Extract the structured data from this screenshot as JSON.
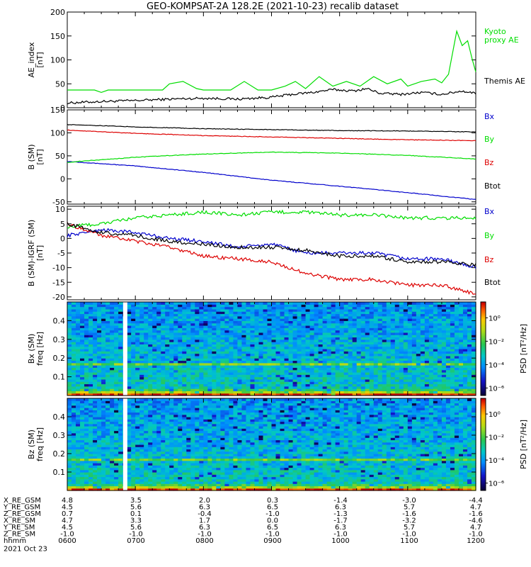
{
  "title": "GEO-KOMPSAT-2A 128.2E (2021-10-23) recalib dataset",
  "colors": {
    "black": "#000000",
    "red": "#dd0000",
    "green": "#00dd00",
    "blue": "#0000cc"
  },
  "time_ticks": [
    "0600",
    "0700",
    "0800",
    "0900",
    "1000",
    "1100",
    "1200"
  ],
  "orbit_table": {
    "rows": [
      {
        "label": "X_RE_GSM",
        "values": [
          "4.8",
          "3.5",
          "2.0",
          "0.3",
          "-1.4",
          "-3.0",
          "-4.4"
        ]
      },
      {
        "label": "Y_RE_GSM",
        "values": [
          "4.5",
          "5.6",
          "6.3",
          "6.5",
          "6.3",
          "5.7",
          "4.7"
        ]
      },
      {
        "label": "Z_RE_GSM",
        "values": [
          "0.7",
          "0.1",
          "-0.4",
          "-1.0",
          "-1.3",
          "-1.6",
          "-1.6"
        ]
      },
      {
        "label": "X_RE_SM",
        "values": [
          "4.7",
          "3.3",
          "1.7",
          "0.0",
          "-1.7",
          "-3.2",
          "-4.6"
        ]
      },
      {
        "label": "Y_RE_SM",
        "values": [
          "4.5",
          "5.6",
          "6.3",
          "6.5",
          "6.3",
          "5.7",
          "4.7"
        ]
      },
      {
        "label": "Z_RE_SM",
        "values": [
          "-1.0",
          "-1.0",
          "-1.0",
          "-1.0",
          "-1.0",
          "-1.0",
          "-1.0"
        ]
      },
      {
        "label": "hhmm",
        "values": [
          "0600",
          "0700",
          "0800",
          "0900",
          "1000",
          "1100",
          "1200"
        ]
      }
    ],
    "date": "2021 Oct 23"
  },
  "chart_data": [
    {
      "type": "line",
      "ylabel": "AE_index\n[nT]",
      "ylim": [
        0,
        200
      ],
      "yticks": [
        "0",
        "50",
        "100",
        "150",
        "200"
      ],
      "x_range": [
        "06:00",
        "12:00"
      ],
      "series": [
        {
          "name": "Kyoto\nproxy AE",
          "color": "green",
          "x": [
            6.0,
            6.4,
            6.5,
            6.6,
            7.0,
            7.4,
            7.5,
            7.7,
            7.9,
            8.0,
            8.4,
            8.6,
            8.8,
            9.0,
            9.2,
            9.35,
            9.5,
            9.7,
            9.9,
            10.1,
            10.3,
            10.5,
            10.7,
            10.9,
            11.0,
            11.2,
            11.4,
            11.5,
            11.6,
            11.72,
            11.8,
            11.88,
            11.95,
            12.0
          ],
          "values": [
            37,
            37,
            32,
            37,
            37,
            37,
            50,
            55,
            40,
            37,
            37,
            55,
            37,
            37,
            45,
            55,
            40,
            65,
            45,
            55,
            45,
            65,
            50,
            60,
            45,
            55,
            60,
            52,
            70,
            160,
            130,
            140,
            100,
            75
          ]
        },
        {
          "name": "Themis AE",
          "color": "black",
          "x": [
            6.0,
            6.5,
            7.0,
            7.5,
            8.0,
            8.5,
            9.0,
            9.3,
            9.6,
            9.9,
            10.2,
            10.4,
            10.6,
            10.9,
            11.2,
            11.5,
            11.8,
            12.0
          ],
          "values": [
            10,
            13,
            15,
            18,
            20,
            18,
            22,
            28,
            32,
            38,
            35,
            40,
            30,
            28,
            32,
            28,
            35,
            30
          ]
        }
      ]
    },
    {
      "type": "line",
      "ylabel": "B (SM)\n[nT]",
      "ylim": [
        -55,
        150
      ],
      "yticks": [
        "-50",
        "0",
        "50",
        "100",
        "150"
      ],
      "series": [
        {
          "name": "Bx",
          "color": "blue",
          "x": [
            6.0,
            7.0,
            8.0,
            9.0,
            10.0,
            11.0,
            12.0
          ],
          "values": [
            38,
            28,
            14,
            -3,
            -16,
            -30,
            -45
          ]
        },
        {
          "name": "By",
          "color": "green",
          "x": [
            6.0,
            7.0,
            8.0,
            9.0,
            10.0,
            11.0,
            12.0
          ],
          "values": [
            36,
            47,
            54,
            58,
            56,
            51,
            43
          ]
        },
        {
          "name": "Bz",
          "color": "red",
          "x": [
            6.0,
            7.0,
            8.0,
            9.0,
            10.0,
            11.0,
            12.0
          ],
          "values": [
            106,
            99,
            94,
            91,
            88,
            85,
            83
          ]
        },
        {
          "name": "Btot",
          "color": "black",
          "x": [
            6.0,
            7.0,
            8.0,
            9.0,
            10.0,
            11.0,
            12.0
          ],
          "values": [
            118,
            113,
            109,
            107,
            105,
            104,
            102
          ]
        }
      ]
    },
    {
      "type": "line",
      "ylabel": "B (SM)-IGRF (SM)\n[nT]",
      "ylim": [
        -21,
        11
      ],
      "yticks": [
        "-20",
        "-15",
        "-10",
        "-5",
        "0",
        "5",
        "10"
      ],
      "series": [
        {
          "name": "Bx",
          "color": "blue",
          "x": [
            6.0,
            6.5,
            7.0,
            7.5,
            8.0,
            8.5,
            9.0,
            9.5,
            10.0,
            10.5,
            11.0,
            11.5,
            12.0
          ],
          "values": [
            1,
            3,
            2,
            0,
            -1,
            -3,
            -2,
            -5,
            -5,
            -5,
            -7,
            -7,
            -10
          ]
        },
        {
          "name": "By",
          "color": "green",
          "x": [
            6.0,
            6.5,
            7.0,
            7.5,
            8.0,
            8.5,
            9.0,
            9.5,
            10.0,
            10.5,
            11.0,
            11.5,
            12.0
          ],
          "values": [
            4,
            5,
            7,
            8,
            9,
            8,
            9,
            9,
            8,
            8,
            7,
            7,
            7
          ]
        },
        {
          "name": "Bz",
          "color": "red",
          "x": [
            6.0,
            6.5,
            7.0,
            7.5,
            8.0,
            8.5,
            9.0,
            9.5,
            10.0,
            10.5,
            11.0,
            11.5,
            12.0
          ],
          "values": [
            5,
            1,
            -1,
            -3,
            -6,
            -7,
            -8,
            -12,
            -14,
            -14,
            -16,
            -16,
            -19
          ]
        },
        {
          "name": "Btot",
          "color": "black",
          "x": [
            6.0,
            6.5,
            7.0,
            7.5,
            8.0,
            8.5,
            9.0,
            9.5,
            10.0,
            10.5,
            11.0,
            11.5,
            12.0
          ],
          "values": [
            5,
            2,
            1,
            -1,
            -2,
            -3,
            -3,
            -4,
            -6,
            -6,
            -8,
            -8,
            -9
          ]
        }
      ]
    },
    {
      "type": "heatmap",
      "ylabel": "Bx (SM)\nfreq [Hz]",
      "ylim": [
        0.0,
        0.5
      ],
      "yticks": [
        "0.1",
        "0.2",
        "0.3",
        "0.4"
      ],
      "colorbar": {
        "label": "PSD [nT²/Hz]",
        "ticks": [
          "10⁰",
          "10⁻²",
          "10⁻⁴",
          "10⁻⁶"
        ]
      },
      "data_gap_x": 6.82
    },
    {
      "type": "heatmap",
      "ylabel": "Bz (SM)\nfreq [Hz]",
      "ylim": [
        0.0,
        0.5
      ],
      "yticks": [
        "0.1",
        "0.2",
        "0.3",
        "0.4"
      ],
      "colorbar": {
        "label": "PSD [nT²/Hz]",
        "ticks": [
          "10⁰",
          "10⁻²",
          "10⁻⁴",
          "10⁻⁶"
        ]
      },
      "data_gap_x": 6.82
    }
  ]
}
